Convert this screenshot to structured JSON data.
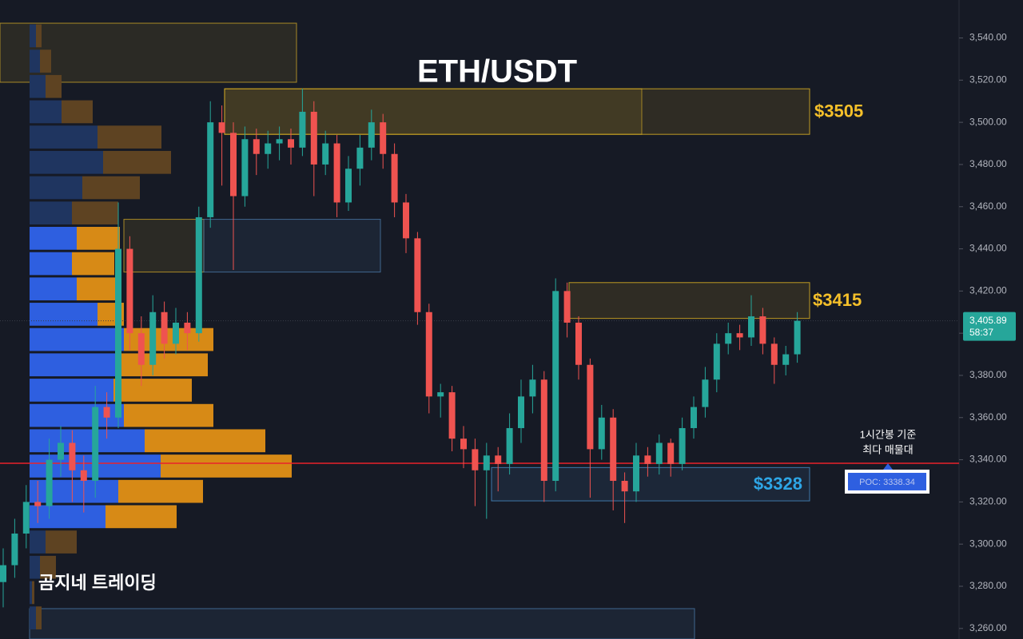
{
  "chart_data": {
    "type": "candlestick",
    "title": "ETH/USDT",
    "watermark": "곰지네 트레이딩",
    "ylim": [
      3255,
      3558
    ],
    "yticks": [
      {
        "value": 3260,
        "label": "3,260.00"
      },
      {
        "value": 3280,
        "label": "3,280.00"
      },
      {
        "value": 3300,
        "label": "3,300.00"
      },
      {
        "value": 3320,
        "label": "3,320.00"
      },
      {
        "value": 3340,
        "label": "3,340.00"
      },
      {
        "value": 3360,
        "label": "3,360.00"
      },
      {
        "value": 3380,
        "label": "3,380.00"
      },
      {
        "value": 3400,
        "label": "3,400.00"
      },
      {
        "value": 3420,
        "label": "3,420.00"
      },
      {
        "value": 3440,
        "label": "3,440.00"
      },
      {
        "value": 3460,
        "label": "3,460.00"
      },
      {
        "value": 3480,
        "label": "3,480.00"
      },
      {
        "value": 3500,
        "label": "3,500.00"
      },
      {
        "value": 3520,
        "label": "3,520.00"
      },
      {
        "value": 3540,
        "label": "3,540.00"
      }
    ],
    "up_color": "#26a69a",
    "down_color": "#ef5350",
    "open": [
      3282,
      3290,
      3305,
      3320,
      3318,
      3340,
      3348,
      3335,
      3330,
      3365,
      3360,
      3440,
      3400,
      3385,
      3410,
      3395,
      3405,
      3400,
      3455,
      3500,
      3495,
      3465,
      3492,
      3485,
      3490,
      3492,
      3488,
      3505,
      3480,
      3490,
      3462,
      3478,
      3488,
      3500,
      3485,
      3462,
      3445,
      3410,
      3370,
      3372,
      3350,
      3345,
      3335,
      3342,
      3338,
      3355,
      3370,
      3378,
      3330,
      3420,
      3405,
      3385,
      3345,
      3360,
      3330,
      3325,
      3342,
      3338,
      3348,
      3338,
      3355,
      3365,
      3378,
      3395,
      3400,
      3398,
      3408,
      3395,
      3385,
      3390
    ],
    "high": [
      3298,
      3312,
      3328,
      3330,
      3350,
      3356,
      3354,
      3342,
      3375,
      3372,
      3462,
      3446,
      3408,
      3418,
      3415,
      3412,
      3410,
      3460,
      3510,
      3508,
      3500,
      3498,
      3497,
      3496,
      3498,
      3497,
      3516,
      3510,
      3496,
      3494,
      3484,
      3494,
      3506,
      3504,
      3490,
      3466,
      3448,
      3414,
      3376,
      3375,
      3356,
      3350,
      3348,
      3346,
      3362,
      3378,
      3385,
      3382,
      3426,
      3424,
      3408,
      3388,
      3366,
      3364,
      3334,
      3348,
      3346,
      3352,
      3350,
      3360,
      3370,
      3384,
      3400,
      3405,
      3404,
      3418,
      3412,
      3398,
      3394,
      3410
    ],
    "low": [
      3270,
      3284,
      3298,
      3310,
      3312,
      3332,
      3320,
      3315,
      3322,
      3350,
      3355,
      3392,
      3375,
      3380,
      3388,
      3390,
      3392,
      3396,
      3450,
      3470,
      3430,
      3460,
      3475,
      3478,
      3482,
      3480,
      3484,
      3465,
      3475,
      3455,
      3458,
      3470,
      3482,
      3478,
      3455,
      3438,
      3404,
      3362,
      3360,
      3344,
      3336,
      3318,
      3312,
      3325,
      3333,
      3348,
      3362,
      3320,
      3325,
      3398,
      3378,
      3322,
      3340,
      3316,
      3310,
      3320,
      3332,
      3333,
      3332,
      3335,
      3350,
      3360,
      3372,
      3390,
      3392,
      3394,
      3390,
      3376,
      3380,
      3386
    ],
    "close": [
      3290,
      3305,
      3320,
      3318,
      3340,
      3348,
      3335,
      3330,
      3365,
      3360,
      3440,
      3400,
      3385,
      3410,
      3395,
      3405,
      3400,
      3455,
      3500,
      3495,
      3465,
      3492,
      3485,
      3490,
      3492,
      3488,
      3505,
      3480,
      3490,
      3462,
      3478,
      3488,
      3500,
      3485,
      3462,
      3445,
      3410,
      3370,
      3372,
      3350,
      3345,
      3335,
      3342,
      3338,
      3355,
      3370,
      3378,
      3330,
      3420,
      3405,
      3385,
      3345,
      3360,
      3330,
      3325,
      3342,
      3338,
      3348,
      3338,
      3355,
      3365,
      3378,
      3395,
      3400,
      3398,
      3408,
      3395,
      3385,
      3390,
      3405.89
    ],
    "current_price": {
      "value": 3405.89,
      "label": "3,405.89",
      "countdown": "58:37",
      "color": "#26a69a"
    },
    "zones": [
      {
        "low": 3519,
        "high": 3547,
        "color": "#c9a227"
      },
      {
        "low": 3494.3,
        "high": 3515.9,
        "color": "#e6b923",
        "label": "$3505",
        "label_color": "#f5c02a"
      },
      {
        "low": 3429,
        "high": 3454,
        "color": "#c9a227"
      },
      {
        "low": 3429,
        "high": 3454,
        "color": "#4a78a8"
      },
      {
        "low": 3407,
        "high": 3424,
        "color": "#e6b923",
        "label": "$3415",
        "label_color": "#f5c02a"
      },
      {
        "low": 3320.5,
        "high": 3336.3,
        "color": "#4a8fc8",
        "label": "$3328",
        "label_color": "#2ea6e6"
      },
      {
        "low": 3255,
        "high": 3269.4,
        "color": "#4a78a8"
      }
    ],
    "volume_profile": {
      "bins": [
        3259,
        3271,
        3283,
        3295,
        3307,
        3319,
        3331,
        3343,
        3355,
        3367,
        3379,
        3391,
        3403,
        3415,
        3427,
        3439,
        3451,
        3463,
        3475,
        3487,
        3499,
        3511,
        3523,
        3535,
        3547
      ],
      "value_area": [
        3307,
        3451
      ],
      "series": [
        {
          "color": "#2e5fe0",
          "dim_color": "#1f3560",
          "values": [
            8,
            3,
            13,
            20,
            95,
            111,
            164,
            144,
            118,
            105,
            111,
            118,
            85,
            59,
            53,
            59,
            53,
            66,
            92,
            85,
            40,
            20,
            13,
            8
          ]
        },
        {
          "color": "#d78a16",
          "dim_color": "#5e4322",
          "values": [
            7,
            3,
            20,
            39,
            89,
            106,
            164,
            151,
            112,
            98,
            112,
            112,
            33,
            54,
            53,
            54,
            58,
            72,
            85,
            80,
            39,
            20,
            14,
            7
          ]
        }
      ]
    },
    "poc": {
      "value": 3338.34,
      "label": "POC: 3338.34",
      "color": "#e8232b"
    },
    "poc_note": [
      "1시간봉 기준",
      "최다 매물대"
    ]
  }
}
